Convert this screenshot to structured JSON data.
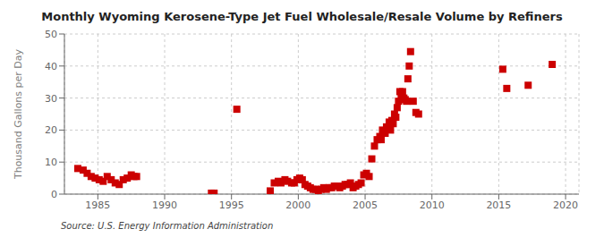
{
  "chart_data": {
    "type": "scatter",
    "title": "Monthly Wyoming Kerosene-Type Jet Fuel Wholesale/Resale Volume by Refiners",
    "ylabel": "Thousand Gallons per Day",
    "annotations": [
      "Source: U.S. Energy Information Administration"
    ],
    "color": "#cc0000",
    "marker": "square",
    "grid": true,
    "xlim": [
      1982.5,
      2021
    ],
    "ylim": [
      0,
      50
    ],
    "xticks": [
      1985,
      1990,
      1995,
      2000,
      2005,
      2010,
      2015,
      2020
    ],
    "yticks": [
      0,
      10,
      20,
      30,
      40,
      50
    ],
    "x": [
      1983.5,
      1983.9,
      1984.2,
      1984.5,
      1984.8,
      1985.1,
      1985.4,
      1985.7,
      1986.0,
      1986.3,
      1986.6,
      1986.9,
      1987.2,
      1987.5,
      1987.7,
      1987.9,
      1993.5,
      1993.7,
      1995.4,
      1997.9,
      1998.2,
      1998.5,
      1998.7,
      1999.0,
      1999.2,
      1999.5,
      1999.7,
      1999.9,
      2000.1,
      2000.3,
      2000.5,
      2000.7,
      2000.9,
      2001.1,
      2001.3,
      2001.5,
      2001.7,
      2001.9,
      2002.1,
      2002.3,
      2002.5,
      2002.7,
      2002.9,
      2003.1,
      2003.3,
      2003.5,
      2003.7,
      2003.9,
      2004.1,
      2004.3,
      2004.5,
      2004.7,
      2004.9,
      2005.1,
      2005.3,
      2005.5,
      2005.7,
      2005.9,
      2006.1,
      2006.2,
      2006.3,
      2006.5,
      2006.6,
      2006.7,
      2006.8,
      2006.9,
      2007.0,
      2007.1,
      2007.2,
      2007.3,
      2007.4,
      2007.5,
      2007.6,
      2007.7,
      2007.8,
      2007.9,
      2008.0,
      2008.1,
      2008.2,
      2008.3,
      2008.4,
      2008.6,
      2008.8,
      2009.0,
      2015.3,
      2015.6,
      2017.2,
      2019.0
    ],
    "values": [
      8.0,
      7.5,
      6.5,
      5.5,
      5.0,
      4.5,
      4.0,
      5.5,
      4.5,
      3.5,
      3.0,
      4.5,
      5.0,
      6.0,
      5.5,
      5.5,
      0.3,
      0.3,
      26.5,
      1.0,
      3.5,
      4.0,
      3.5,
      4.5,
      4.0,
      3.5,
      3.5,
      4.5,
      5.0,
      4.5,
      3.0,
      2.5,
      2.0,
      1.5,
      1.5,
      1.0,
      1.5,
      2.0,
      1.5,
      2.0,
      2.0,
      2.5,
      2.5,
      2.0,
      2.5,
      3.0,
      3.0,
      3.5,
      2.0,
      2.5,
      3.0,
      3.5,
      6.0,
      6.5,
      5.5,
      11.0,
      15.0,
      17.0,
      18.0,
      17.0,
      20.0,
      19.0,
      21.0,
      20.5,
      22.5,
      20.0,
      23.0,
      22.0,
      25.0,
      24.0,
      27.0,
      29.0,
      32.0,
      30.0,
      32.0,
      30.0,
      29.5,
      29.0,
      36.0,
      40.0,
      44.5,
      29.0,
      25.5,
      25.0,
      39.0,
      33.0,
      34.0,
      40.5
    ]
  }
}
